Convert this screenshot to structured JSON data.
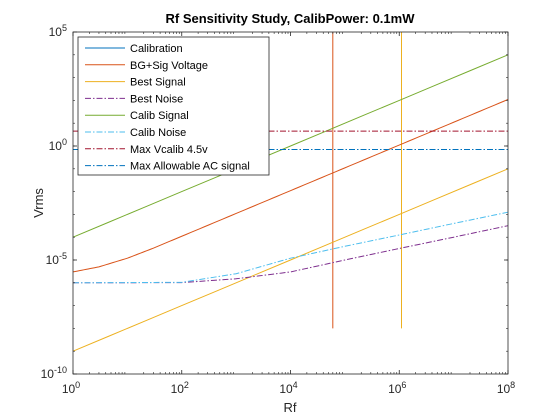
{
  "chart_data": {
    "type": "line",
    "title": "Rf Sensitivity Study, CalibPower: 0.1mW",
    "xlabel": "Rf",
    "ylabel": "Vrms",
    "xscale": "log",
    "yscale": "log",
    "xlim": [
      1,
      100000000
    ],
    "ylim": [
      1e-10,
      100000
    ],
    "xticks": [
      {
        "value": 1,
        "base": "10",
        "exp": "0"
      },
      {
        "value": 100,
        "base": "10",
        "exp": "2"
      },
      {
        "value": 10000,
        "base": "10",
        "exp": "4"
      },
      {
        "value": 1000000,
        "base": "10",
        "exp": "6"
      },
      {
        "value": 100000000,
        "base": "10",
        "exp": "8"
      }
    ],
    "yticks": [
      {
        "value": 1e-10,
        "base": "10",
        "exp": "-10"
      },
      {
        "value": 1e-05,
        "base": "10",
        "exp": "-5"
      },
      {
        "value": 1,
        "base": "10",
        "exp": "0"
      },
      {
        "value": 100000,
        "base": "10",
        "exp": "5"
      }
    ],
    "grid": false,
    "legend_position": "top-left",
    "series": [
      {
        "name": "Calibration",
        "color": "#0072bd",
        "dash": "solid",
        "x": [],
        "y": []
      },
      {
        "name": "BG+Sig Voltage",
        "color": "#d95319",
        "dash": "solid",
        "x": [
          1,
          3,
          10,
          30,
          100,
          1000,
          10000,
          100000,
          1000000,
          10000000,
          100000000
        ],
        "y": [
          3e-06,
          5e-06,
          1.2e-05,
          3.3e-05,
          0.00011,
          0.0011,
          0.011,
          0.11,
          1.1,
          11,
          110
        ]
      },
      {
        "name": "Best Signal",
        "color": "#edb120",
        "dash": "solid",
        "x": [
          1,
          100000000
        ],
        "y": [
          1e-09,
          0.1
        ]
      },
      {
        "name": "Best Noise",
        "color": "#7e2f8e",
        "dash": "dashdot",
        "x": [
          1,
          100,
          1000,
          10000,
          100000,
          1000000,
          10000000,
          100000000
        ],
        "y": [
          1e-06,
          1.02e-06,
          1.5e-06,
          3e-06,
          1e-05,
          3.2e-05,
          0.0001,
          0.00032
        ]
      },
      {
        "name": "Calib Signal",
        "color": "#77ac30",
        "dash": "solid",
        "x": [
          1,
          100000000
        ],
        "y": [
          0.0001,
          10000
        ]
      },
      {
        "name": "Calib Noise",
        "color": "#4dbeee",
        "dash": "dashdot",
        "x": [
          1,
          100,
          1000,
          10000,
          100000,
          1000000,
          10000000,
          100000000
        ],
        "y": [
          1e-06,
          1.05e-06,
          2.5e-06,
          1.2e-05,
          4e-05,
          0.000125,
          0.0004,
          0.00125
        ]
      },
      {
        "name": "Max Vcalib 4.5v",
        "color": "#a2142f",
        "dash": "dashdot",
        "x": [
          1,
          100000000
        ],
        "y": [
          4.5,
          4.5
        ]
      },
      {
        "name": "Max Allowable AC signal",
        "color": "#0072bd",
        "dash": "dashdot",
        "x": [
          1,
          100000000
        ],
        "y": [
          0.7,
          0.7
        ]
      }
    ],
    "vertical_lines": [
      {
        "x": 60000,
        "color": "#d95319",
        "y": [
          1e-08,
          100000
        ]
      },
      {
        "x": 1100000,
        "color": "#edb120",
        "y": [
          1e-08,
          100000
        ]
      }
    ]
  }
}
